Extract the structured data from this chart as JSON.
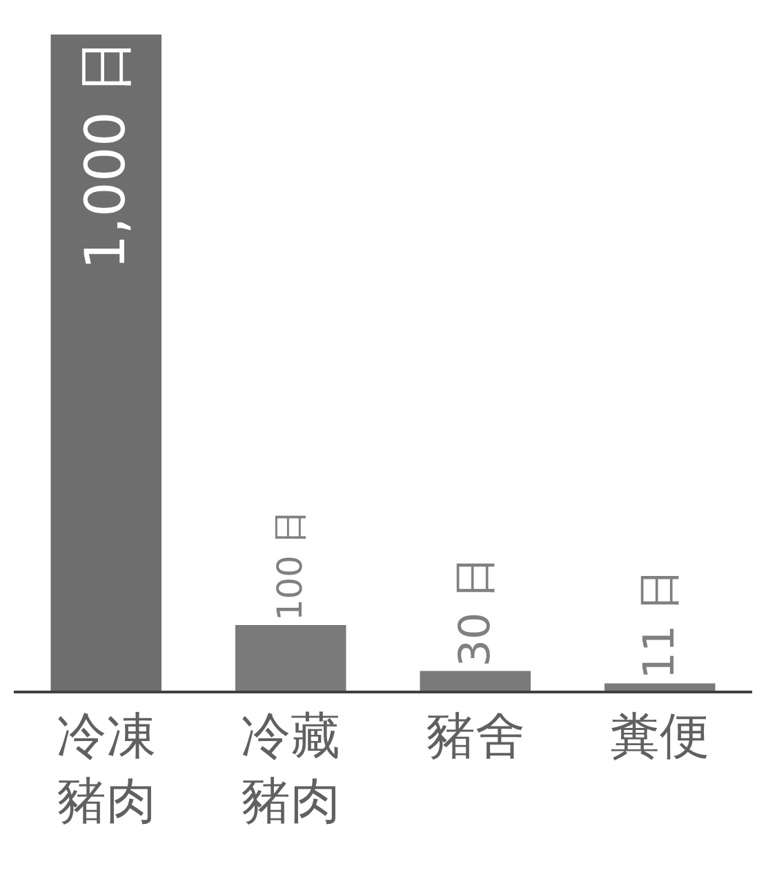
{
  "chart_data": {
    "type": "bar",
    "categories": [
      "冷凍豬肉",
      "冷藏豬肉",
      "豬舍",
      "糞便"
    ],
    "values": [
      1000,
      100,
      30,
      11
    ],
    "value_labels": [
      "1,000 日",
      "100 日",
      "30 日",
      "11 日"
    ],
    "colors": [
      "#6e6e6e",
      "#7a7a7a",
      "#7a7a7a",
      "#7a7a7a"
    ]
  }
}
